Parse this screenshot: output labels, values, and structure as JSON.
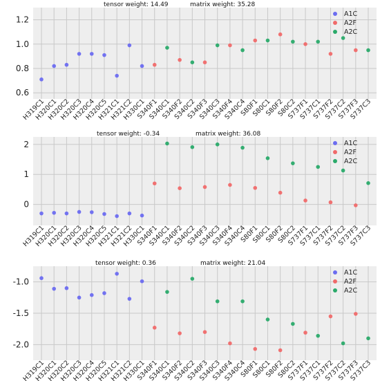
{
  "colors": {
    "A1C": "#6b6cf0",
    "A2F": "#f06a6a",
    "A2C": "#2aaa6a"
  },
  "chart_data": [
    {
      "type": "scatter",
      "categories": [
        "H319C1",
        "H320C1",
        "H320C2",
        "H320C3",
        "H320C4",
        "H320C5",
        "H321C1",
        "H321C2",
        "H330C1",
        "S340F1",
        "S340C1",
        "S340F2",
        "S340C2",
        "S340F3",
        "S340C3",
        "S340F4",
        "S340C4",
        "S80F1",
        "S80C1",
        "S80F2",
        "S80C2",
        "S737F1",
        "S737C1",
        "S737F2",
        "S737C2",
        "S737F3",
        "S737C3"
      ],
      "groups": [
        "A1C",
        "A1C",
        "A1C",
        "A1C",
        "A1C",
        "A1C",
        "A1C",
        "A1C",
        "A1C",
        "A2F",
        "A2C",
        "A2F",
        "A2C",
        "A2F",
        "A2C",
        "A2F",
        "A2C",
        "A2F",
        "A2C",
        "A2F",
        "A2C",
        "A2F",
        "A2C",
        "A2F",
        "A2C",
        "A2F",
        "A2C"
      ],
      "values": [
        0.71,
        0.82,
        0.83,
        0.92,
        0.92,
        0.91,
        0.74,
        0.99,
        0.82,
        0.83,
        0.97,
        0.87,
        0.85,
        0.85,
        0.99,
        0.99,
        0.95,
        1.03,
        1.03,
        1.08,
        1.02,
        1.0,
        1.02,
        0.92,
        1.05,
        0.95,
        0.95
      ],
      "legend": [
        "A1C",
        "A2F",
        "A2C"
      ],
      "legend_position": "top-right",
      "ylim": [
        0.55,
        1.3
      ],
      "yticks": [
        0.6,
        0.8,
        1.0,
        1.2
      ],
      "ytick_labels": [
        "0.6",
        "0.8",
        "1.0",
        "1.2"
      ],
      "annotations": [
        "tensor weight: 14.49",
        "matrix weight: 35.28"
      ],
      "grid": true
    },
    {
      "type": "scatter",
      "categories": [
        "H319C1",
        "H320C1",
        "H320C2",
        "H320C3",
        "H320C4",
        "H320C5",
        "H321C1",
        "H321C2",
        "H330C1",
        "S340F1",
        "S340C1",
        "S340F2",
        "S340C2",
        "S340F3",
        "S340C3",
        "S340F4",
        "S340C4",
        "S80F1",
        "S80C1",
        "S80F2",
        "S80C2",
        "S737F1",
        "S737C1",
        "S737F2",
        "S737C2",
        "S737F3",
        "S737C3"
      ],
      "groups": [
        "A1C",
        "A1C",
        "A1C",
        "A1C",
        "A1C",
        "A1C",
        "A1C",
        "A1C",
        "A1C",
        "A2F",
        "A2C",
        "A2F",
        "A2C",
        "A2F",
        "A2C",
        "A2F",
        "A2C",
        "A2F",
        "A2C",
        "A2F",
        "A2C",
        "A2F",
        "A2C",
        "A2F",
        "A2C",
        "A2F",
        "A2C"
      ],
      "values": [
        -0.3,
        -0.28,
        -0.3,
        -0.25,
        -0.26,
        -0.32,
        -0.39,
        -0.3,
        -0.37,
        0.7,
        2.03,
        0.54,
        1.91,
        0.58,
        2.0,
        0.65,
        1.89,
        0.55,
        1.54,
        0.39,
        1.37,
        0.13,
        1.25,
        0.07,
        1.13,
        -0.03,
        0.71
      ],
      "legend": [
        "A1C",
        "A2F",
        "A2C"
      ],
      "legend_position": "top-right",
      "ylim": [
        -0.7,
        2.25
      ],
      "yticks": [
        0,
        1,
        2
      ],
      "ytick_labels": [
        "0",
        "1",
        "2"
      ],
      "annotations": [
        "tensor weight: -0.34",
        "matrix weight: 36.08"
      ],
      "grid": true
    },
    {
      "type": "scatter",
      "categories": [
        "H319C1",
        "H320C1",
        "H320C2",
        "H320C3",
        "H320C4",
        "H320C5",
        "H321C1",
        "H321C2",
        "H330C1",
        "S340F1",
        "S340C1",
        "S340F2",
        "S340C2",
        "S340F3",
        "S340C3",
        "S340F4",
        "S340C4",
        "S80F1",
        "S80C1",
        "S80F2",
        "S80C2",
        "S737F1",
        "S737C1",
        "S737F2",
        "S737C2",
        "S737F3",
        "S737C3"
      ],
      "groups": [
        "A1C",
        "A1C",
        "A1C",
        "A1C",
        "A1C",
        "A1C",
        "A1C",
        "A1C",
        "A1C",
        "A2F",
        "A2C",
        "A2F",
        "A2C",
        "A2F",
        "A2C",
        "A2F",
        "A2C",
        "A2F",
        "A2C",
        "A2F",
        "A2C",
        "A2F",
        "A2C",
        "A2F",
        "A2C",
        "A2F",
        "A2C"
      ],
      "values": [
        -0.94,
        -1.11,
        -1.1,
        -1.25,
        -1.21,
        -1.18,
        -0.87,
        -1.27,
        -0.99,
        -1.73,
        -1.16,
        -1.82,
        -0.95,
        -1.8,
        -1.31,
        -1.98,
        -1.31,
        -2.07,
        -1.6,
        -2.09,
        -1.67,
        -1.81,
        -1.86,
        -1.55,
        -1.98,
        -1.51,
        -1.9
      ],
      "legend": [
        "A1C",
        "A2F",
        "A2C"
      ],
      "legend_position": "top-right",
      "ylim": [
        -2.25,
        -0.75
      ],
      "yticks": [
        -1.0,
        -1.5,
        -2.0
      ],
      "ytick_labels": [
        "-1.0",
        "-1.5",
        "-2.0"
      ],
      "annotations": [
        "tensor weight: 0.36",
        "matrix weight: 21.04"
      ],
      "grid": true
    }
  ]
}
